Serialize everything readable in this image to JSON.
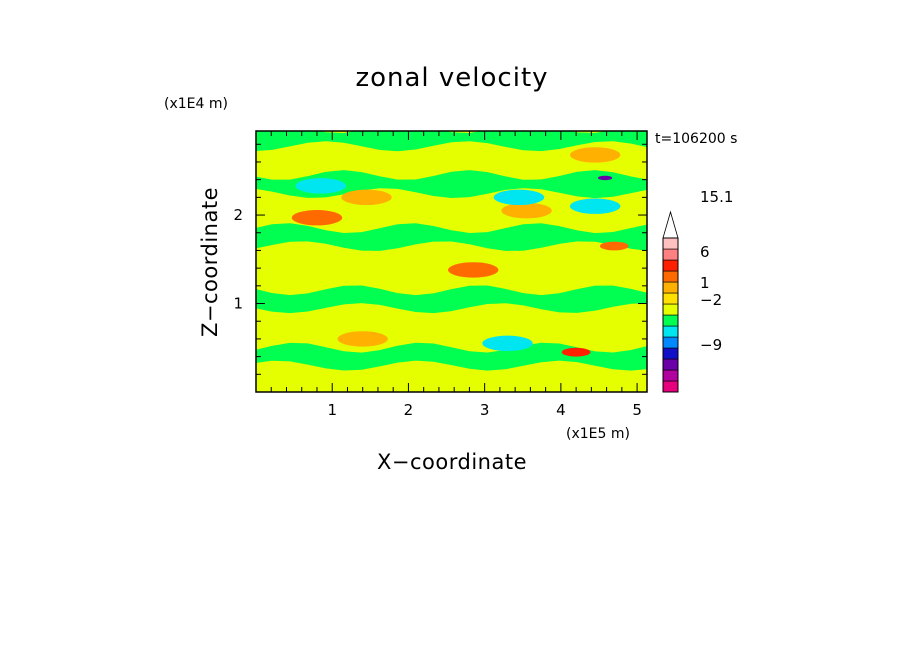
{
  "chart_data": {
    "type": "heatmap",
    "title": "zonal velocity",
    "xlabel": "X−coordinate",
    "ylabel": "Z−coordinate",
    "x_unit": "(x1E5 m)",
    "y_unit": "(x1E4 m)",
    "time_label": "t=106200 s",
    "xlim": [
      0,
      5.13
    ],
    "ylim": [
      0,
      2.95
    ],
    "xticks": [
      "1",
      "2",
      "3",
      "4",
      "5"
    ],
    "yticks": [
      "1",
      "2"
    ],
    "colorbar": {
      "labels": [
        "15.1",
        "6",
        "1",
        "−2",
        "−9"
      ],
      "colors": [
        "#e6007e",
        "#b0009e",
        "#6a00a8",
        "#1010c8",
        "#0088ff",
        "#00e6f0",
        "#00ff50",
        "#e6ff00",
        "#ffe000",
        "#ffb000",
        "#ff6a00",
        "#ff2000",
        "#ff8080",
        "#ffc0c0",
        "#ffffff"
      ]
    },
    "bands": [
      {
        "z": 0.12,
        "u": 1
      },
      {
        "z": 0.4,
        "u": -1
      },
      {
        "z": 0.75,
        "u": 1
      },
      {
        "z": 1.05,
        "u": -1
      },
      {
        "z": 1.45,
        "u": 1
      },
      {
        "z": 1.75,
        "u": -1
      },
      {
        "z": 2.05,
        "u": 1
      },
      {
        "z": 2.35,
        "u": -1
      },
      {
        "z": 2.65,
        "u": 1
      },
      {
        "z": 2.88,
        "u": -1
      }
    ],
    "features": [
      {
        "x": 0.8,
        "z": 1.97,
        "u": 4
      },
      {
        "x": 1.45,
        "z": 2.2,
        "u": 3
      },
      {
        "x": 1.4,
        "z": 0.6,
        "u": 3
      },
      {
        "x": 2.85,
        "z": 1.38,
        "u": 4
      },
      {
        "x": 3.55,
        "z": 2.05,
        "u": 3
      },
      {
        "x": 4.7,
        "z": 1.65,
        "u": 5
      },
      {
        "x": 4.45,
        "z": 2.68,
        "u": 3
      },
      {
        "x": 4.2,
        "z": 0.45,
        "u": 6
      },
      {
        "x": 4.58,
        "z": 2.42,
        "u": -12
      },
      {
        "x": 3.45,
        "z": 2.2,
        "u": -3
      },
      {
        "x": 3.3,
        "z": 0.55,
        "u": -3
      },
      {
        "x": 0.85,
        "z": 2.33,
        "u": -3
      },
      {
        "x": 4.45,
        "z": 2.1,
        "u": -3
      }
    ]
  }
}
